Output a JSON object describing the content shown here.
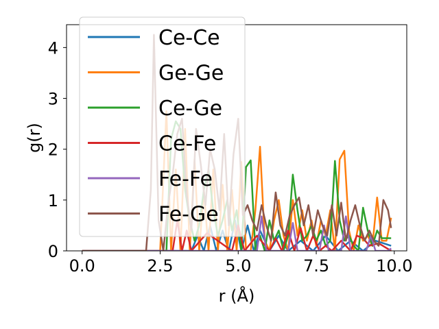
{
  "chart_data": {
    "type": "line",
    "title": "",
    "xlabel": "r (Å)",
    "ylabel": "g(r)",
    "xlim": [
      -0.5,
      10.4
    ],
    "ylim": [
      0,
      4.45
    ],
    "xticks": [
      0.0,
      2.5,
      5.0,
      7.5,
      10.0
    ],
    "xtick_labels": [
      "0.0",
      "2.5",
      "5.0",
      "7.5",
      "10.0"
    ],
    "yticks": [
      0,
      1,
      2,
      3,
      4
    ],
    "ytick_labels": [
      "0",
      "1",
      "2",
      "3",
      "4"
    ],
    "grid": false,
    "legend_position": "upper-left",
    "series": [
      {
        "name": "Ce-Ce",
        "color": "#1f77b4",
        "x": [
          0,
          3.5,
          3.7,
          3.9,
          4.1,
          4.3,
          4.5,
          4.7,
          4.9,
          5.1,
          5.3,
          5.5,
          5.7,
          6.0,
          6.3,
          6.6,
          7.0,
          7.4,
          7.8,
          8.2,
          8.6,
          9.0,
          9.4,
          9.9
        ],
        "y": [
          0,
          0,
          0.3,
          0,
          0.5,
          0,
          0.4,
          0,
          0.6,
          0,
          0.5,
          0,
          0.4,
          0,
          0.3,
          0,
          0.2,
          0,
          0.3,
          0,
          0.2,
          0,
          0.2,
          0.1
        ]
      },
      {
        "name": "Ge-Ge",
        "color": "#ff7f0e",
        "x": [
          0,
          2.5,
          2.7,
          2.85,
          3.0,
          3.15,
          3.3,
          3.45,
          3.6,
          3.75,
          3.9,
          4.05,
          4.2,
          4.35,
          4.5,
          4.65,
          4.8,
          4.95,
          5.1,
          5.25,
          5.4,
          5.55,
          5.7,
          5.85,
          6.0,
          6.15,
          6.3,
          6.45,
          6.6,
          6.75,
          6.9,
          7.05,
          7.2,
          7.35,
          7.5,
          7.65,
          7.8,
          7.95,
          8.1,
          8.25,
          8.4,
          8.55,
          8.7,
          8.85,
          9.0,
          9.15,
          9.3,
          9.45,
          9.6,
          9.75,
          9.9
        ],
        "y": [
          0,
          0,
          2.75,
          0,
          1.6,
          0,
          2.4,
          0,
          1.8,
          0,
          1.2,
          0,
          1.6,
          0,
          1.3,
          0,
          1.2,
          0,
          1.75,
          0,
          0,
          0.8,
          2.05,
          0.2,
          0,
          0.6,
          1.0,
          0.3,
          0,
          1.0,
          0.3,
          0.8,
          0.2,
          0.6,
          0.1,
          0.6,
          0.3,
          0.8,
          0,
          1.8,
          1.97,
          0.4,
          0,
          0.5,
          0.2,
          0.3,
          0.1,
          1.05,
          0.2,
          0.2,
          0.65
        ]
      },
      {
        "name": "Ce-Ge",
        "color": "#2ca02c",
        "x": [
          0,
          2.7,
          2.85,
          3.0,
          3.15,
          3.3,
          3.45,
          3.6,
          3.75,
          3.9,
          4.05,
          4.2,
          4.35,
          4.5,
          4.65,
          4.8,
          4.95,
          5.1,
          5.25,
          5.4,
          5.55,
          5.7,
          5.85,
          6.0,
          6.15,
          6.3,
          6.45,
          6.6,
          6.75,
          6.9,
          7.05,
          7.2,
          7.35,
          7.5,
          7.65,
          7.8,
          7.95,
          8.1,
          8.25,
          8.4,
          8.55,
          8.7,
          8.85,
          9.0,
          9.15,
          9.3,
          9.45,
          9.6,
          9.9
        ],
        "y": [
          0,
          0,
          2.2,
          2.55,
          2.4,
          1.2,
          0.6,
          0.2,
          0.5,
          1.2,
          1.6,
          0.8,
          0.3,
          0.6,
          1.0,
          0.4,
          0.8,
          0,
          1.65,
          1.78,
          0,
          0.3,
          0,
          0.6,
          0.2,
          0.4,
          0,
          0.3,
          1.5,
          0.8,
          0.2,
          0.3,
          0.5,
          0.2,
          0.4,
          0.1,
          0.2,
          1.77,
          0.6,
          0.2,
          0.3,
          0.1,
          0,
          0.85,
          0.4,
          0.1,
          0.4,
          0.25,
          0.25
        ]
      },
      {
        "name": "Ce-Fe",
        "color": "#d62728",
        "x": [
          0,
          2.9,
          3.05,
          3.2,
          3.35,
          3.5,
          4.0,
          4.8,
          5.0,
          5.2,
          5.6,
          6.0,
          6.2,
          6.4,
          6.6,
          6.8,
          7.0,
          7.2,
          7.4,
          7.6,
          7.8,
          8.0,
          8.3,
          8.6,
          8.8,
          9.0,
          9.2,
          9.5,
          9.9
        ],
        "y": [
          0,
          0,
          0.6,
          0,
          0.4,
          0,
          0.35,
          0,
          0.5,
          0,
          0.3,
          0,
          0.25,
          0,
          0.4,
          0,
          0.45,
          0,
          0.3,
          0,
          0.1,
          0,
          0.2,
          0,
          0.3,
          0.25,
          0.1,
          0.15,
          0
        ]
      },
      {
        "name": "Fe-Fe",
        "color": "#9467bd",
        "x": [
          0,
          5.6,
          5.75,
          5.9,
          6.6,
          6.75,
          6.9,
          7.6,
          7.75,
          7.9,
          8.1,
          8.3,
          8.45,
          8.6,
          9.1,
          9.25,
          9.4,
          9.8,
          9.9
        ],
        "y": [
          0,
          0,
          0.68,
          0,
          0,
          0.55,
          0,
          0,
          0.5,
          0,
          0,
          0,
          0.68,
          0,
          0,
          0.3,
          0,
          0,
          0.05
        ]
      },
      {
        "name": "Fe-Ge",
        "color": "#8c564b",
        "x": [
          0,
          2.05,
          2.2,
          2.3,
          2.45,
          2.6,
          2.75,
          2.9,
          3.05,
          3.2,
          3.35,
          3.5,
          3.65,
          3.8,
          3.95,
          4.1,
          4.25,
          4.4,
          4.55,
          4.7,
          4.85,
          5.0,
          5.15,
          5.3,
          5.45,
          5.6,
          5.75,
          5.9,
          6.05,
          6.2,
          6.35,
          6.5,
          6.65,
          6.8,
          6.95,
          7.1,
          7.25,
          7.4,
          7.55,
          7.7,
          7.85,
          8.0,
          8.15,
          8.3,
          8.45,
          8.6,
          8.75,
          8.9,
          9.05,
          9.2,
          9.35,
          9.5,
          9.65,
          9.8,
          9.9
        ],
        "y": [
          0,
          0,
          1.2,
          4.25,
          0.6,
          0,
          0.9,
          1.5,
          2.3,
          2.6,
          1.1,
          0.4,
          2.4,
          1.7,
          0.9,
          2.0,
          1.6,
          0.8,
          2.3,
          0.5,
          1.9,
          2.6,
          0.7,
          0.9,
          0.6,
          0.4,
          0.9,
          0.5,
          0.2,
          1.15,
          0.5,
          0.3,
          0.7,
          0.9,
          1.05,
          0.5,
          0.9,
          0.3,
          0.8,
          0.5,
          0.3,
          0.9,
          0.3,
          0.95,
          0.2,
          0.6,
          0.9,
          0.5,
          0.2,
          0.4,
          0.2,
          0.1,
          1.0,
          0.8,
          0.45
        ]
      }
    ]
  }
}
